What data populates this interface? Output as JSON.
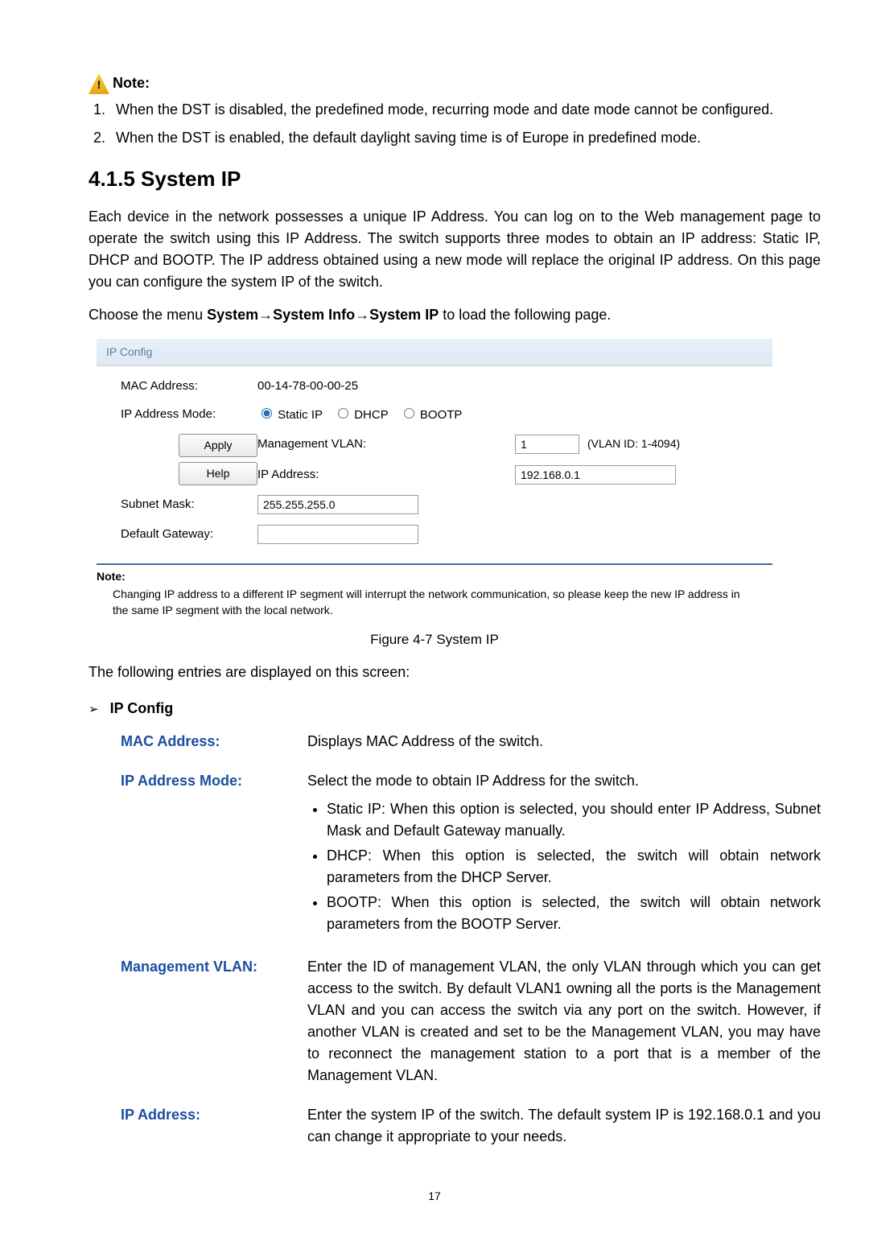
{
  "note_header": "Note:",
  "dst_notes": [
    "When the DST is disabled, the predefined mode, recurring mode and date mode cannot be configured.",
    "When the DST is enabled, the default daylight saving time is of Europe in predefined mode."
  ],
  "section_title": "4.1.5 System IP",
  "intro_para": "Each device in the network possesses a unique IP Address. You can log on to the Web management page to operate the switch using this IP Address. The switch supports three modes to obtain an IP address: Static IP, DHCP and BOOTP. The IP address obtained using a new mode will replace the original IP address. On this page you can configure the system IP of the switch.",
  "menu_prefix": "Choose the menu ",
  "menu_path": "System→System Info→System IP",
  "menu_suffix": " to load the following page.",
  "panel": {
    "header": "IP Config",
    "mac_label": "MAC Address:",
    "mac_value": "00-14-78-00-00-25",
    "mode_label": "IP Address Mode:",
    "modes": {
      "static": "Static IP",
      "dhcp": "DHCP",
      "bootp": "BOOTP"
    },
    "vlan_label": "Management VLAN:",
    "vlan_value": "1",
    "vlan_hint": "(VLAN ID: 1-4094)",
    "ip_label": "IP Address:",
    "ip_value": "192.168.0.1",
    "mask_label": "Subnet Mask:",
    "mask_value": "255.255.255.0",
    "gw_label": "Default Gateway:",
    "gw_value": "",
    "apply_btn": "Apply",
    "help_btn": "Help",
    "footer_note_title": "Note:",
    "footer_note_body": "Changing IP address to a different IP segment will interrupt the network communication, so please keep the new IP address in the same IP segment with the local network."
  },
  "figure_caption": "Figure 4-7 System IP",
  "entries_intro": "The following entries are displayed on this screen:",
  "ip_config_heading": "IP Config",
  "fields": {
    "mac": {
      "label": "MAC Address:",
      "desc": "Displays MAC Address of the switch."
    },
    "mode": {
      "label": "IP Address Mode:",
      "desc_line": "Select the mode to obtain IP Address for the switch.",
      "items": [
        "Static IP: When this option is selected, you should enter IP Address, Subnet Mask and Default Gateway manually.",
        "DHCP: When this option is selected, the switch will obtain network parameters from the DHCP Server.",
        "BOOTP: When this option is selected, the switch will obtain network parameters from the BOOTP Server."
      ]
    },
    "vlan": {
      "label": "Management VLAN:",
      "desc": "Enter the ID of management VLAN, the only VLAN through which you can get access to the switch. By default VLAN1 owning all the ports is the Management VLAN and you can access the switch via any port on the switch. However, if another VLAN is created and set to be the Management VLAN, you may have to reconnect the management station to a port that is a member of the Management VLAN."
    },
    "ip": {
      "label": "IP Address:",
      "desc": "Enter the system IP of the switch. The default system IP is 192.168.0.1 and you can change it appropriate to your needs."
    }
  },
  "page_number": "17",
  "colors": {
    "link_blue": "#1b4ea0",
    "panel_header_text": "#5a7ea8",
    "panel_rule": "#3d6ca6"
  }
}
